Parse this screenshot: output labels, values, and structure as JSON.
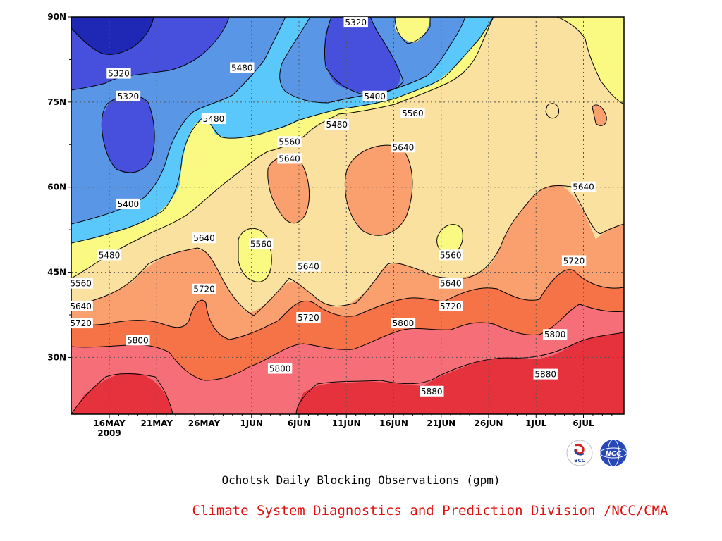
{
  "chart_data": {
    "type": "heatmap",
    "title": "Ochotsk Daily Blocking Observations (gpm)",
    "xlabel": "",
    "ylabel": "",
    "x_ticks": [
      "16MAY",
      "21MAY",
      "26MAY",
      "1JUN",
      "6JUN",
      "11JUN",
      "16JUN",
      "21JUN",
      "26JUN",
      "1JUL",
      "6JUL"
    ],
    "x_year_label": "2009",
    "y_ticks": [
      "30N",
      "45N",
      "60N",
      "75N",
      "90N"
    ],
    "y_values": [
      30,
      45,
      60,
      75,
      90
    ],
    "ylim": [
      20,
      90
    ],
    "contour_levels": [
      5320,
      5400,
      5480,
      5560,
      5640,
      5720,
      5800,
      5880
    ],
    "level_colors": [
      "#1e28b4",
      "#4650dc",
      "#5a96e6",
      "#5ac8fa",
      "#fafa82",
      "#fae1a0",
      "#faa06e",
      "#f57346",
      "#f56e78",
      "#e6323c"
    ],
    "contour_labels": [
      {
        "value": "5320",
        "lon_day": "17MAY",
        "lat": 80
      },
      {
        "value": "5320",
        "lon_day": "18MAY",
        "lat": 76
      },
      {
        "value": "5320",
        "lon_day": "11JUN",
        "lat": 89
      },
      {
        "value": "5400",
        "lon_day": "18MAY",
        "lat": 57
      },
      {
        "value": "5400",
        "lon_day": "13JUN",
        "lat": 76
      },
      {
        "value": "5480",
        "lon_day": "16MAY",
        "lat": 48
      },
      {
        "value": "5480",
        "lon_day": "27MAY",
        "lat": 72
      },
      {
        "value": "5480",
        "lon_day": "30MAY",
        "lat": 81
      },
      {
        "value": "5480",
        "lon_day": "9JUN",
        "lat": 71
      },
      {
        "value": "5560",
        "lon_day": "13MAY",
        "lat": 43
      },
      {
        "value": "5560",
        "lon_day": "4JUN",
        "lat": 68
      },
      {
        "value": "5560",
        "lon_day": "1JUN",
        "lat": 50
      },
      {
        "value": "5560",
        "lon_day": "17JUN",
        "lat": 73
      },
      {
        "value": "5560",
        "lon_day": "21JUN",
        "lat": 48
      },
      {
        "value": "5640",
        "lon_day": "13MAY",
        "lat": 39
      },
      {
        "value": "5640",
        "lon_day": "26MAY",
        "lat": 51
      },
      {
        "value": "5640",
        "lon_day": "4JUN",
        "lat": 65
      },
      {
        "value": "5640",
        "lon_day": "6JUN",
        "lat": 46
      },
      {
        "value": "5640",
        "lon_day": "16JUN",
        "lat": 67
      },
      {
        "value": "5640",
        "lon_day": "21JUN",
        "lat": 43
      },
      {
        "value": "5640",
        "lon_day": "5JUL",
        "lat": 60
      },
      {
        "value": "5720",
        "lon_day": "13MAY",
        "lat": 36
      },
      {
        "value": "5720",
        "lon_day": "26MAY",
        "lat": 42
      },
      {
        "value": "5720",
        "lon_day": "6JUN",
        "lat": 37
      },
      {
        "value": "5720",
        "lon_day": "21JUN",
        "lat": 39
      },
      {
        "value": "5720",
        "lon_day": "4JUL",
        "lat": 47
      },
      {
        "value": "5800",
        "lon_day": "19MAY",
        "lat": 33
      },
      {
        "value": "5800",
        "lon_day": "3JUN",
        "lat": 28
      },
      {
        "value": "5800",
        "lon_day": "16JUN",
        "lat": 36
      },
      {
        "value": "5800",
        "lon_day": "2JUL",
        "lat": 34
      },
      {
        "value": "5880",
        "lon_day": "19JUN",
        "lat": 24
      },
      {
        "value": "5880",
        "lon_day": "1JUL",
        "lat": 27
      }
    ],
    "grid": true,
    "grid_style": "dotted"
  },
  "footer": {
    "credit": "Climate System Diagnostics and Prediction Division /NCC/CMA",
    "logo_left": "BCC",
    "logo_right": "NCC"
  },
  "colors": {
    "credit_text": "#e01010"
  }
}
